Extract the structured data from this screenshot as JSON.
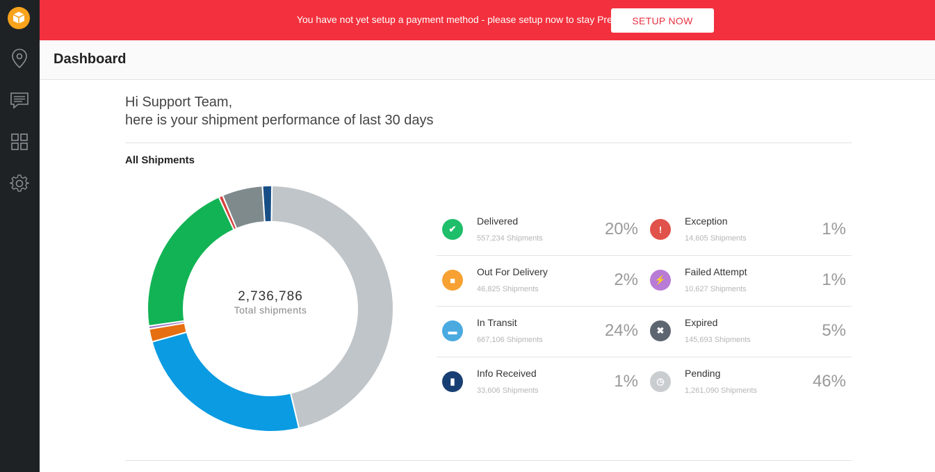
{
  "banner": {
    "message": "You have not yet setup a payment method - please setup now to stay Premium.",
    "button_label": "SETUP NOW"
  },
  "sidebar": {
    "items": [
      {
        "icon": "location-pin-icon"
      },
      {
        "icon": "chat-icon"
      },
      {
        "icon": "grid-icon"
      },
      {
        "icon": "gear-icon"
      }
    ]
  },
  "header": {
    "title": "Dashboard"
  },
  "greeting": {
    "line1": "Hi Support Team,",
    "line2": "here is your shipment performance of last 30 days"
  },
  "section": {
    "title": "All Shipments"
  },
  "total": {
    "value": "2,736,786",
    "label": "Total shipments"
  },
  "colors": {
    "delivered": "#1fbe6a",
    "out_for_delivery": "#f7a132",
    "in_transit": "#4aaae0",
    "info_received": "#183f73",
    "exception": "#e0524a",
    "failed_attempt": "#b87bd6",
    "expired": "#5d6670",
    "pending": "#c9cdd0"
  },
  "stats": [
    {
      "name": "Delivered",
      "count": "557,234 Shipments",
      "pct": "20%",
      "color": "#1fbe6a",
      "icon": "check-icon",
      "glyph": "✔"
    },
    {
      "name": "Exception",
      "count": "14,605 Shipments",
      "pct": "1%",
      "color": "#e0524a",
      "icon": "exclamation-icon",
      "glyph": "!"
    },
    {
      "name": "Out For Delivery",
      "count": "46,825 Shipments",
      "pct": "2%",
      "color": "#f7a132",
      "icon": "box-icon",
      "glyph": "■"
    },
    {
      "name": "Failed Attempt",
      "count": "10,627 Shipments",
      "pct": "1%",
      "color": "#b87bd6",
      "icon": "lightning-icon",
      "glyph": "⚡"
    },
    {
      "name": "In Transit",
      "count": "667,106 Shipments",
      "pct": "24%",
      "color": "#4aaae0",
      "icon": "truck-icon",
      "glyph": "▬"
    },
    {
      "name": "Expired",
      "count": "145,693 Shipments",
      "pct": "5%",
      "color": "#5d6670",
      "icon": "x-icon",
      "glyph": "✖"
    },
    {
      "name": "Info Received",
      "count": "33,606 Shipments",
      "pct": "1%",
      "color": "#183f73",
      "icon": "document-icon",
      "glyph": "▮"
    },
    {
      "name": "Pending",
      "count": "1,261,090 Shipments",
      "pct": "46%",
      "color": "#c9cdd0",
      "icon": "clock-icon",
      "glyph": "◷"
    }
  ],
  "chart_data": {
    "type": "pie",
    "slices": [
      {
        "label": "Pending",
        "value": 1261090,
        "color": "#c0c5c9"
      },
      {
        "label": "In Transit",
        "value": 667106,
        "color": "#0a9be2"
      },
      {
        "label": "Out For Delivery",
        "value": 46825,
        "color": "#e66f12"
      },
      {
        "label": "Failed Attempt",
        "value": 10627,
        "color": "#9a74c4"
      },
      {
        "label": "Delivered",
        "value": 557234,
        "color": "#12b354"
      },
      {
        "label": "Exception",
        "value": 14605,
        "color": "#d6423c"
      },
      {
        "label": "Expired",
        "value": 145693,
        "color": "#7f8a8d"
      },
      {
        "label": "Info Received",
        "value": 33606,
        "color": "#174e85"
      }
    ]
  }
}
